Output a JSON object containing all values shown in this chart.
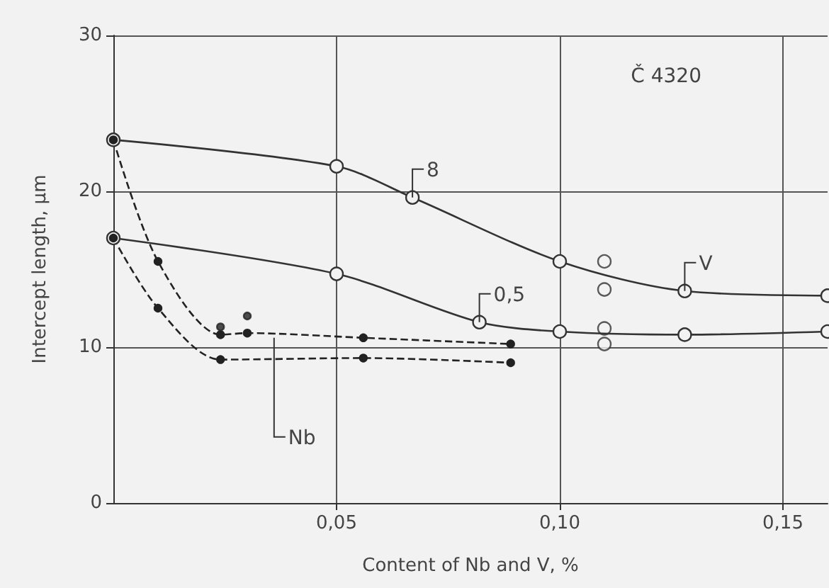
{
  "chart_data": {
    "type": "line",
    "title": "Č 4320",
    "xlabel": "Content of Nb and V, %",
    "ylabel": "Intercept length, μm",
    "xlim": [
      0,
      0.16
    ],
    "xticks": [
      {
        "value": 0.05,
        "label": "0,05"
      },
      {
        "value": 0.1,
        "label": "0,10"
      },
      {
        "value": 0.15,
        "label": "0,15"
      }
    ],
    "ylim": [
      0,
      30
    ],
    "yticks": [
      0,
      10,
      20,
      30
    ],
    "grid": true,
    "series": [
      {
        "color": "#333333",
        "marker": "circle",
        "line_style": "solid",
        "x": [
          0,
          0.05,
          0.067,
          0.1,
          0.128,
          0.16
        ],
        "values": [
          23.3,
          21.6,
          19.6,
          15.5,
          13.6,
          13.3
        ]
      },
      {
        "color": "#333333",
        "marker": "circle",
        "line_style": "solid",
        "x": [
          0,
          0.05,
          0.082,
          0.1,
          0.128,
          0.16
        ],
        "values": [
          17,
          14.7,
          11.6,
          11.0,
          10.8,
          11.0
        ]
      },
      {
        "color": "#333333",
        "marker": "circle",
        "type": "scatter",
        "x": [
          0.11,
          0.11,
          0.11,
          0.11
        ],
        "values": [
          15.5,
          13.7,
          11.2,
          10.2
        ]
      },
      {
        "color": "#222222",
        "marker": "circle",
        "line_style": "dashed",
        "x": [
          0,
          0.01,
          0.024,
          0.03,
          0.056,
          0.089
        ],
        "values": [
          23.3,
          15.5,
          10.8,
          10.9,
          10.6,
          10.2
        ]
      },
      {
        "color": "#222222",
        "marker": "circle",
        "line_style": "dashed",
        "x": [
          0,
          0.01,
          0.024,
          0.056,
          0.089
        ],
        "values": [
          17,
          12.5,
          9.2,
          9.3,
          9.0
        ]
      },
      {
        "color": "#222222",
        "marker": "circle",
        "type": "scatter",
        "x": [
          0.03,
          0.024
        ],
        "values": [
          12.0,
          11.3
        ]
      }
    ],
    "annotations": [
      {
        "text": "8",
        "x": 0.067,
        "y": 19.6
      },
      {
        "text": "0,5",
        "x": 0.082,
        "y": 11.6
      },
      {
        "text": "V",
        "x": 0.128,
        "y": 13.6
      },
      {
        "text": "Nb",
        "x": 0.036,
        "y": 10.6
      }
    ]
  }
}
